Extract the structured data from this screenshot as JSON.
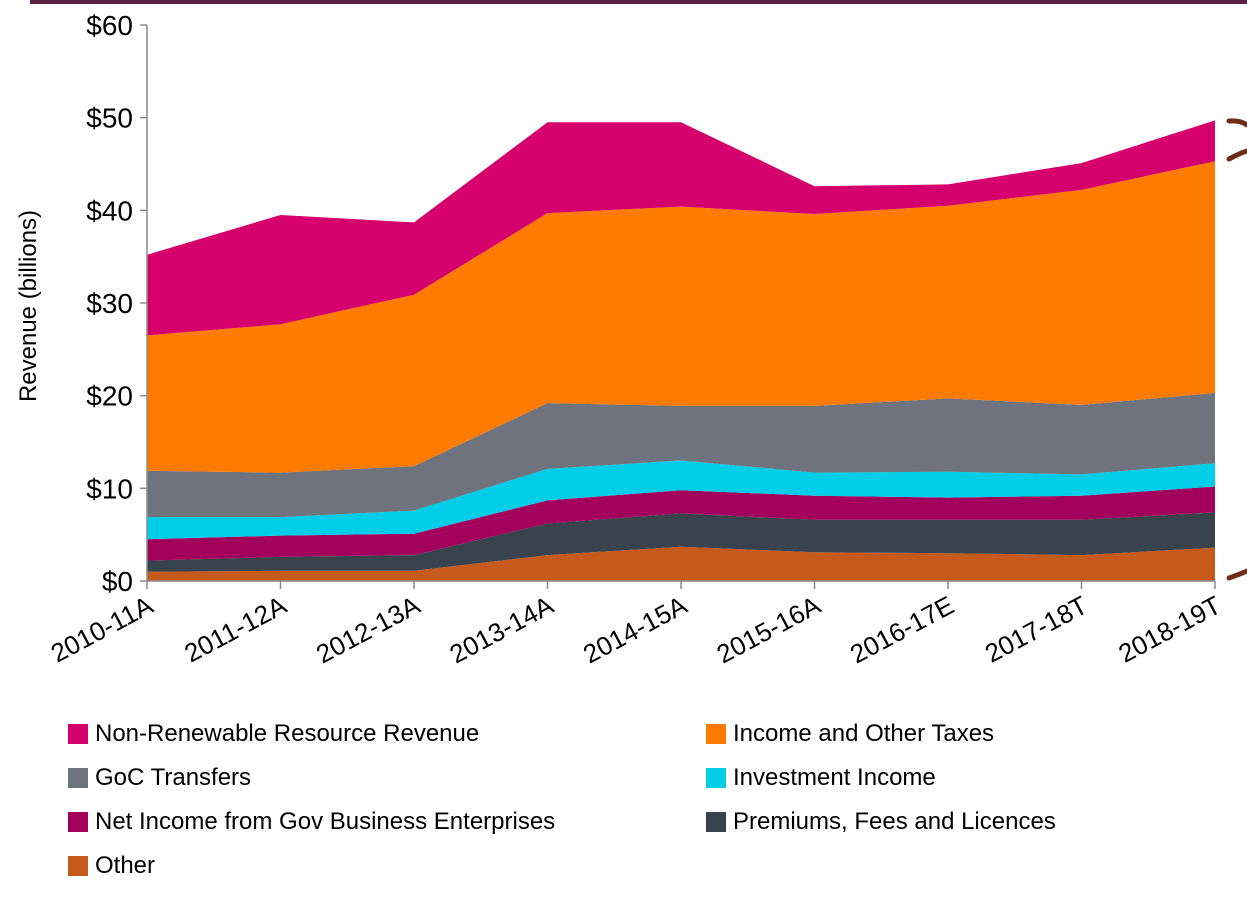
{
  "chart_data": {
    "type": "area",
    "stacked": true,
    "ylabel": "Revenue (billions)",
    "xlabel": "",
    "ylim": [
      0,
      60
    ],
    "y_ticks": [
      "$0",
      "$10",
      "$20",
      "$30",
      "$40",
      "$50",
      "$60"
    ],
    "y_tick_values": [
      0,
      10,
      20,
      30,
      40,
      50,
      60
    ],
    "categories": [
      "2010-11A",
      "2011-12A",
      "2012-13A",
      "2013-14A",
      "2014-15A",
      "2015-16A",
      "2016-17E",
      "2017-18T",
      "2018-19T"
    ],
    "grid": false,
    "legend_position": "bottom",
    "series": [
      {
        "name": "Other",
        "color": "#c55a1c",
        "values": [
          1.0,
          1.1,
          1.1,
          2.8,
          3.7,
          3.1,
          3.0,
          2.8,
          3.6
        ]
      },
      {
        "name": "Premiums, Fees and Licences",
        "color": "#38434d",
        "values": [
          1.2,
          1.5,
          1.7,
          3.4,
          3.6,
          3.5,
          3.6,
          3.8,
          3.8
        ]
      },
      {
        "name": "Net Income from Gov Business Enterprises",
        "color": "#a3005e",
        "values": [
          2.3,
          2.3,
          2.3,
          2.5,
          2.5,
          2.6,
          2.4,
          2.6,
          2.8
        ]
      },
      {
        "name": "Investment Income",
        "color": "#00cde8",
        "values": [
          2.4,
          2.0,
          2.5,
          3.4,
          3.2,
          2.5,
          2.8,
          2.3,
          2.5
        ]
      },
      {
        "name": "GoC Transfers",
        "color": "#6e737d",
        "values": [
          5.0,
          4.8,
          4.8,
          7.1,
          5.9,
          7.2,
          7.9,
          7.5,
          7.6
        ]
      },
      {
        "name": "Income and Other Taxes",
        "color": "#ff7b00",
        "values": [
          14.6,
          16.0,
          18.5,
          20.5,
          21.5,
          20.7,
          20.8,
          23.2,
          25.0
        ]
      },
      {
        "name": "Non-Renewable Resource Revenue",
        "color": "#d5006d",
        "values": [
          8.7,
          11.8,
          7.8,
          9.8,
          9.1,
          3.0,
          2.3,
          2.9,
          4.4
        ]
      }
    ]
  },
  "legend": [
    {
      "label": "Non-Renewable Resource Revenue",
      "color": "#d5006d"
    },
    {
      "label": "Income and Other Taxes",
      "color": "#ff7b00"
    },
    {
      "label": "GoC Transfers",
      "color": "#6e737d"
    },
    {
      "label": "Investment Income",
      "color": "#00cde8"
    },
    {
      "label": "Net Income from Gov Business Enterprises",
      "color": "#a3005e"
    },
    {
      "label": "Premiums, Fees and Licences",
      "color": "#38434d"
    },
    {
      "label": "Other",
      "color": "#c55a1c"
    }
  ],
  "colors": {
    "top_rule": "#5a2045",
    "bracket_marks": "#6b2f1a"
  }
}
